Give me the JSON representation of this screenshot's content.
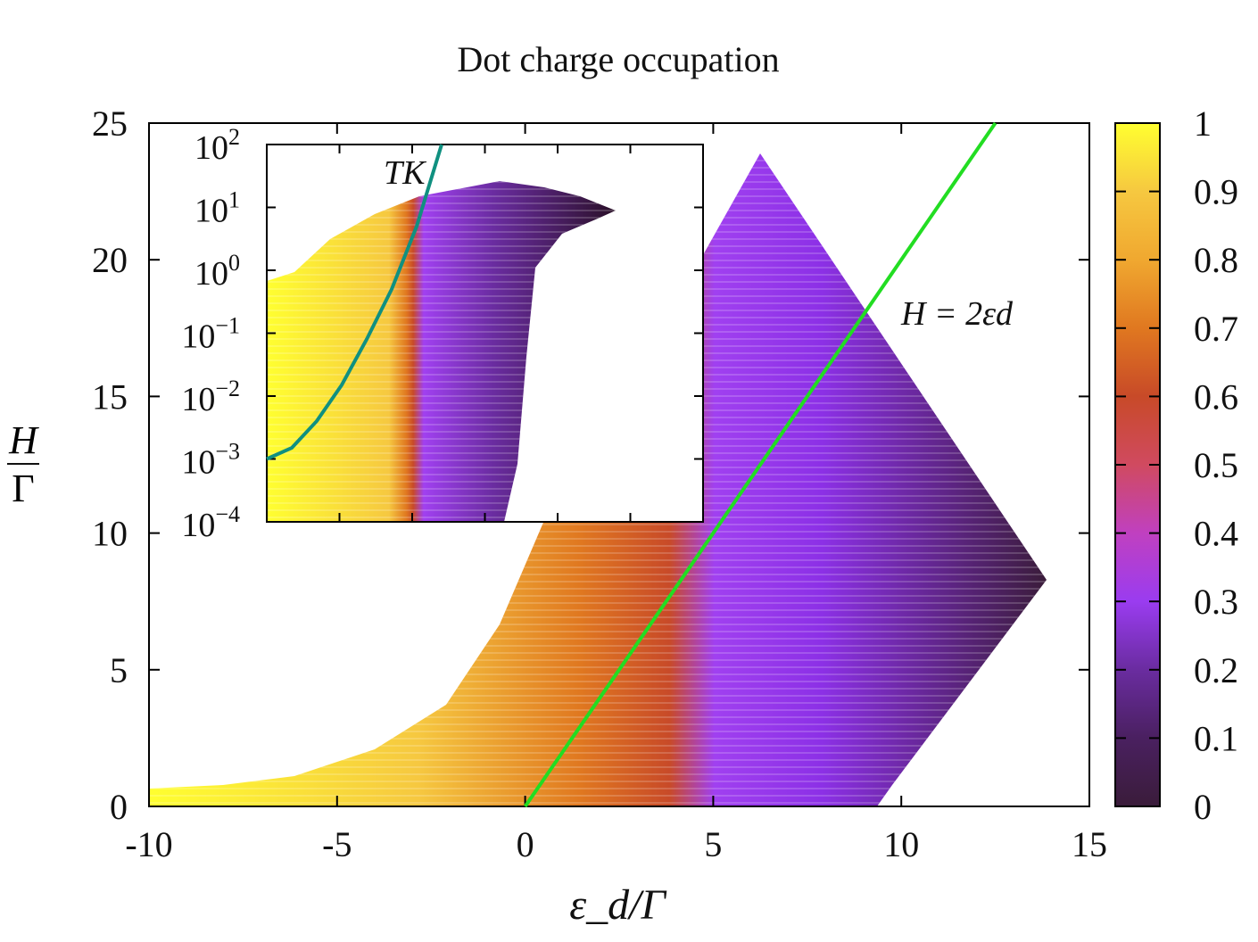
{
  "chart_data": [
    {
      "type": "heatmap",
      "title": "Dot charge occupation",
      "xlabel": "ε_d/Γ",
      "ylabel": "H/Γ",
      "xlim": [
        -10,
        15
      ],
      "ylim": [
        0,
        25
      ],
      "x_ticks": [
        "-10",
        "-5",
        "0",
        "5",
        "10",
        "15"
      ],
      "y_ticks": [
        "0",
        "5",
        "10",
        "15",
        "20",
        "25"
      ],
      "colorbar": {
        "min": 0,
        "max": 1,
        "ticks": [
          "0",
          "0.1",
          "0.2",
          "0.3",
          "0.4",
          "0.5",
          "0.6",
          "0.7",
          "0.8",
          "0.9",
          "1"
        ],
        "colors": [
          "#3a1c3a",
          "#4a2060",
          "#6a2ca0",
          "#8c30e6",
          "#a040f0",
          "#c040c0",
          "#d04a60",
          "#c84a28",
          "#e07820",
          "#f0a830",
          "#f6c840",
          "#ffff30"
        ]
      },
      "series": [
        {
          "name": "H = 2ε_d",
          "color": "#22dd22",
          "x": [
            0,
            12.5
          ],
          "y": [
            0,
            25
          ]
        }
      ],
      "annotations": [
        {
          "text": "H = 2ε_d",
          "x": 10,
          "y": 18
        }
      ],
      "legend": "none",
      "grid": false
    },
    {
      "type": "heatmap",
      "name": "inset",
      "yscale": "log",
      "ylim": [
        0.0001,
        100
      ],
      "y_ticks": [
        "10^2",
        "10^1",
        "10^0",
        "10^-1",
        "10^-2",
        "10^-3",
        "10^-4"
      ],
      "series": [
        {
          "name": "T_K",
          "color": "#109080",
          "x": [
            -10,
            -8,
            -6,
            -4,
            -2,
            0,
            2,
            4
          ],
          "y": [
            0.001,
            0.0015,
            0.004,
            0.015,
            0.08,
            0.5,
            5,
            100
          ]
        }
      ],
      "annotations": [
        {
          "text": "T_K"
        }
      ]
    }
  ],
  "labels": {
    "title": "Dot charge occupation",
    "annotation_main": "H = 2εd",
    "annotation_inset": "TK"
  }
}
